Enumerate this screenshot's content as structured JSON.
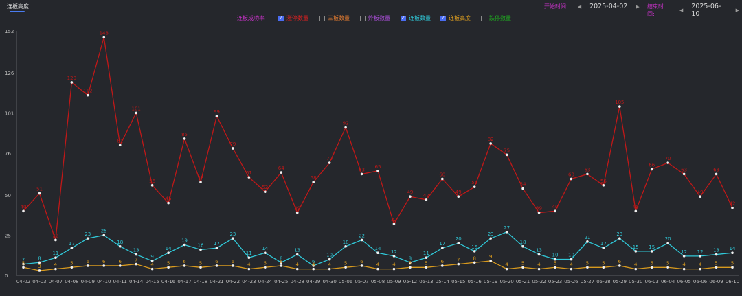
{
  "tab": {
    "label": "连板高度"
  },
  "date_range": {
    "start_label": "开始时间:",
    "start_value": "2025-04-02",
    "end_label": "结束时间:",
    "end_value": "2025-06-10",
    "prev_icon": "triangle-left-icon",
    "next_icon": "triangle-right-icon"
  },
  "legend": [
    {
      "label": "连板成功率",
      "checked": false,
      "color": "#cc33cc"
    },
    {
      "label": "涨停数量",
      "checked": true,
      "color": "#e02020"
    },
    {
      "label": "三板数量",
      "checked": false,
      "color": "#e07a30"
    },
    {
      "label": "炸板数量",
      "checked": false,
      "color": "#b050e0"
    },
    {
      "label": "连板数量",
      "checked": true,
      "color": "#30c8d8"
    },
    {
      "label": "连板高度",
      "checked": true,
      "color": "#e0a020"
    },
    {
      "label": "跌停数量",
      "checked": false,
      "color": "#20b020"
    }
  ],
  "chart_data": {
    "type": "line",
    "categories": [
      "04-02",
      "04-03",
      "04-07",
      "04-08",
      "04-09",
      "04-10",
      "04-11",
      "04-14",
      "04-15",
      "04-16",
      "04-17",
      "04-18",
      "04-21",
      "04-22",
      "04-23",
      "04-24",
      "04-25",
      "04-28",
      "04-29",
      "04-30",
      "05-06",
      "05-07",
      "05-08",
      "05-09",
      "05-12",
      "05-13",
      "05-14",
      "05-15",
      "05-16",
      "05-19",
      "05-20",
      "05-21",
      "05-22",
      "05-23",
      "05-26",
      "05-27",
      "05-28",
      "05-29",
      "05-30",
      "06-03",
      "06-04",
      "06-05",
      "06-06",
      "06-09",
      "06-10"
    ],
    "y_ticks": [
      "0",
      "25",
      "50",
      "76",
      "101",
      "126",
      "152"
    ],
    "ylim": [
      0,
      152
    ],
    "grid": false,
    "series": [
      {
        "name": "涨停数量",
        "color": "#c01818",
        "values": [
          40,
          51,
          22,
          120,
          112,
          148,
          81,
          101,
          56,
          45,
          85,
          58,
          99,
          79,
          61,
          52,
          64,
          39,
          58,
          70,
          92,
          63,
          65,
          32,
          49,
          47,
          60,
          49,
          55,
          82,
          75,
          54,
          39,
          40,
          60,
          63,
          56,
          105,
          40,
          66,
          70,
          63,
          49,
          63,
          42
        ]
      },
      {
        "name": "连板数量",
        "color": "#30c8d8",
        "values": [
          7,
          8,
          11,
          17,
          23,
          25,
          18,
          13,
          9,
          14,
          19,
          16,
          17,
          23,
          11,
          14,
          8,
          13,
          6,
          10,
          18,
          22,
          14,
          12,
          8,
          11,
          17,
          20,
          15,
          23,
          27,
          18,
          13,
          10,
          10,
          21,
          17,
          23,
          15,
          15,
          20,
          12,
          12,
          13,
          14
        ]
      },
      {
        "name": "连板高度",
        "color": "#d89a1e",
        "values": [
          5,
          3,
          4,
          5,
          6,
          6,
          6,
          7,
          4,
          5,
          6,
          5,
          6,
          6,
          4,
          5,
          6,
          4,
          4,
          4,
          5,
          6,
          4,
          4,
          5,
          5,
          6,
          7,
          8,
          9,
          4,
          5,
          4,
          5,
          4,
          5,
          5,
          6,
          4,
          5,
          5,
          4,
          4,
          5,
          5
        ]
      }
    ]
  }
}
